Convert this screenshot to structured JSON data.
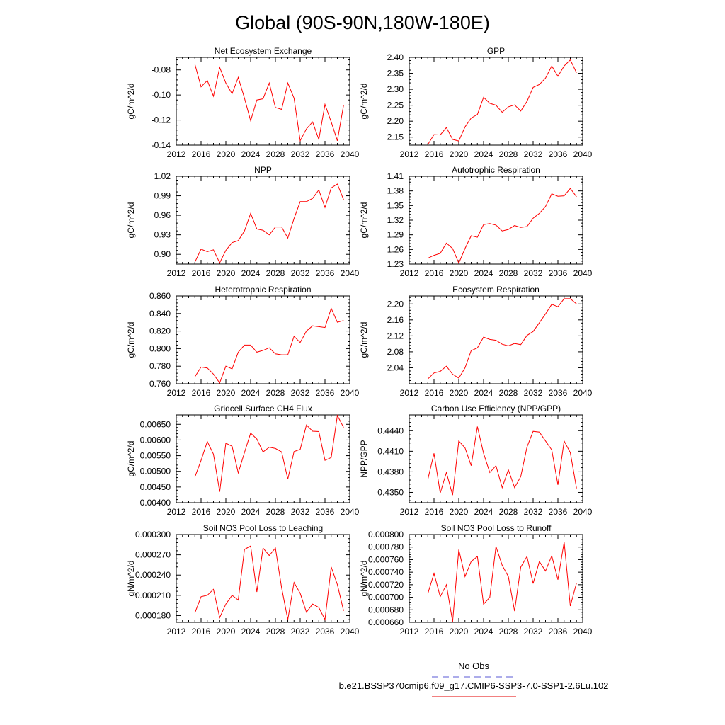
{
  "figure": {
    "title": "Global (90S-90N,180W-180E)",
    "legend": [
      {
        "label": "No Obs",
        "color": "#5a5ad6",
        "dash": "dashed"
      },
      {
        "label": "b.e21.BSSP370cmip6.f09_g17.CMIP6-SSP3-7.0-SSP1-2.6Lu.102",
        "color": "#e60000",
        "dash": "solid"
      }
    ]
  },
  "colors": {
    "series": "#ff0000",
    "axis": "#000000",
    "background": "#ffffff"
  },
  "chart_data": [
    {
      "type": "line",
      "title": "Net Ecosystem Exchange",
      "ylabel": "gC/m^2/d",
      "xlim": [
        2012,
        2040
      ],
      "ylim": [
        -0.14,
        -0.07
      ],
      "xticks": [
        2012,
        2016,
        2020,
        2024,
        2028,
        2032,
        2036,
        2040
      ],
      "yticks": [
        -0.14,
        -0.12,
        -0.1,
        -0.08
      ],
      "ytick_labels": [
        "-0.14",
        "-0.12",
        "-0.10",
        "-0.08"
      ],
      "x": [
        2015,
        2016,
        2017,
        2018,
        2019,
        2020,
        2021,
        2022,
        2023,
        2024,
        2025,
        2026,
        2027,
        2028,
        2029,
        2030,
        2031,
        2032,
        2033,
        2034,
        2035,
        2036,
        2037,
        2038,
        2039
      ],
      "values": [
        -0.0755,
        -0.0935,
        -0.0885,
        -0.101,
        -0.078,
        -0.0905,
        -0.099,
        -0.086,
        -0.1025,
        -0.1205,
        -0.104,
        -0.103,
        -0.0905,
        -0.11,
        -0.1115,
        -0.0905,
        -0.1025,
        -0.1365,
        -0.127,
        -0.1215,
        -0.1355,
        -0.1075,
        -0.1215,
        -0.1365,
        -0.108
      ]
    },
    {
      "type": "line",
      "title": "GPP",
      "ylabel": "gC/m^2/d",
      "xlim": [
        2012,
        2040
      ],
      "ylim": [
        2.125,
        2.4
      ],
      "xticks": [
        2012,
        2016,
        2020,
        2024,
        2028,
        2032,
        2036,
        2040
      ],
      "yticks": [
        2.15,
        2.2,
        2.25,
        2.3,
        2.35,
        2.4
      ],
      "ytick_labels": [
        "2.15",
        "2.20",
        "2.25",
        "2.30",
        "2.35",
        "2.40"
      ],
      "x": [
        2015,
        2016,
        2017,
        2018,
        2019,
        2020,
        2021,
        2022,
        2023,
        2024,
        2025,
        2026,
        2027,
        2028,
        2029,
        2030,
        2031,
        2032,
        2033,
        2034,
        2035,
        2036,
        2037,
        2038,
        2039
      ],
      "values": [
        2.127,
        2.158,
        2.157,
        2.18,
        2.143,
        2.138,
        2.182,
        2.21,
        2.221,
        2.275,
        2.256,
        2.25,
        2.228,
        2.245,
        2.251,
        2.232,
        2.262,
        2.306,
        2.315,
        2.335,
        2.373,
        2.341,
        2.373,
        2.392,
        2.352
      ]
    },
    {
      "type": "line",
      "title": "NPP",
      "ylabel": "gC/m^2/d",
      "xlim": [
        2012,
        2040
      ],
      "ylim": [
        0.885,
        1.02
      ],
      "xticks": [
        2012,
        2016,
        2020,
        2024,
        2028,
        2032,
        2036,
        2040
      ],
      "yticks": [
        0.9,
        0.93,
        0.96,
        0.99,
        1.02
      ],
      "ytick_labels": [
        "0.90",
        "0.93",
        "0.96",
        "0.99",
        "1.02"
      ],
      "x": [
        2015,
        2016,
        2017,
        2018,
        2019,
        2020,
        2021,
        2022,
        2023,
        2024,
        2025,
        2026,
        2027,
        2028,
        2029,
        2030,
        2031,
        2032,
        2033,
        2034,
        2035,
        2036,
        2037,
        2038,
        2039
      ],
      "values": [
        0.888,
        0.908,
        0.904,
        0.907,
        0.887,
        0.906,
        0.918,
        0.921,
        0.936,
        0.963,
        0.939,
        0.937,
        0.93,
        0.942,
        0.942,
        0.925,
        0.955,
        0.981,
        0.981,
        0.986,
        0.999,
        0.972,
        1.002,
        1.008,
        0.984
      ]
    },
    {
      "type": "line",
      "title": "Autotrophic Respiration",
      "ylabel": "gC/m^2/d",
      "xlim": [
        2012,
        2040
      ],
      "ylim": [
        1.23,
        1.41
      ],
      "xticks": [
        2012,
        2016,
        2020,
        2024,
        2028,
        2032,
        2036,
        2040
      ],
      "yticks": [
        1.23,
        1.26,
        1.29,
        1.32,
        1.35,
        1.38,
        1.41
      ],
      "ytick_labels": [
        "1.23",
        "1.26",
        "1.29",
        "1.32",
        "1.35",
        "1.38",
        "1.41"
      ],
      "x": [
        2015,
        2016,
        2017,
        2018,
        2019,
        2020,
        2021,
        2022,
        2023,
        2024,
        2025,
        2026,
        2027,
        2028,
        2029,
        2030,
        2031,
        2032,
        2033,
        2034,
        2035,
        2036,
        2037,
        2038,
        2039
      ],
      "values": [
        1.242,
        1.248,
        1.252,
        1.273,
        1.262,
        1.232,
        1.262,
        1.288,
        1.285,
        1.311,
        1.313,
        1.31,
        1.298,
        1.301,
        1.309,
        1.305,
        1.307,
        1.324,
        1.334,
        1.348,
        1.374,
        1.369,
        1.37,
        1.385,
        1.368
      ]
    },
    {
      "type": "line",
      "title": "Heterotrophic Respiration",
      "ylabel": "gC/m^2/d",
      "xlim": [
        2012,
        2040
      ],
      "ylim": [
        0.76,
        0.86
      ],
      "xticks": [
        2012,
        2016,
        2020,
        2024,
        2028,
        2032,
        2036,
        2040
      ],
      "yticks": [
        0.76,
        0.78,
        0.8,
        0.82,
        0.84,
        0.86
      ],
      "ytick_labels": [
        "0.760",
        "0.780",
        "0.800",
        "0.820",
        "0.840",
        "0.860"
      ],
      "x": [
        2015,
        2016,
        2017,
        2018,
        2019,
        2020,
        2021,
        2022,
        2023,
        2024,
        2025,
        2026,
        2027,
        2028,
        2029,
        2030,
        2031,
        2032,
        2033,
        2034,
        2035,
        2036,
        2037,
        2038,
        2039
      ],
      "values": [
        0.768,
        0.779,
        0.778,
        0.771,
        0.761,
        0.78,
        0.777,
        0.796,
        0.804,
        0.804,
        0.796,
        0.798,
        0.801,
        0.794,
        0.793,
        0.793,
        0.814,
        0.807,
        0.82,
        0.826,
        0.825,
        0.824,
        0.846,
        0.83,
        0.832
      ]
    },
    {
      "type": "line",
      "title": "Ecosystem Respiration",
      "ylabel": "gC/m^2/d",
      "xlim": [
        2012,
        2040
      ],
      "ylim": [
        2.0,
        2.22
      ],
      "xticks": [
        2012,
        2016,
        2020,
        2024,
        2028,
        2032,
        2036,
        2040
      ],
      "yticks": [
        2.04,
        2.08,
        2.12,
        2.16,
        2.2
      ],
      "ytick_labels": [
        "2.04",
        "2.08",
        "2.12",
        "2.16",
        "2.20"
      ],
      "x": [
        2015,
        2016,
        2017,
        2018,
        2019,
        2020,
        2021,
        2022,
        2023,
        2024,
        2025,
        2026,
        2027,
        2028,
        2029,
        2030,
        2031,
        2032,
        2033,
        2034,
        2035,
        2036,
        2037,
        2038,
        2039
      ],
      "values": [
        2.012,
        2.027,
        2.031,
        2.044,
        2.024,
        2.014,
        2.04,
        2.083,
        2.09,
        2.117,
        2.111,
        2.109,
        2.099,
        2.095,
        2.101,
        2.098,
        2.121,
        2.131,
        2.153,
        2.175,
        2.199,
        2.193,
        2.213,
        2.213,
        2.2
      ]
    },
    {
      "type": "line",
      "title": "Gridcell Surface CH4 Flux",
      "ylabel": "gC/m^2/d",
      "xlim": [
        2012,
        2040
      ],
      "ylim": [
        0.004,
        0.0068
      ],
      "xticks": [
        2012,
        2016,
        2020,
        2024,
        2028,
        2032,
        2036,
        2040
      ],
      "yticks": [
        0.004,
        0.0045,
        0.005,
        0.0055,
        0.006,
        0.0065
      ],
      "ytick_labels": [
        "0.00400",
        "0.00450",
        "0.00500",
        "0.00550",
        "0.00600",
        "0.00650"
      ],
      "x": [
        2015,
        2016,
        2017,
        2018,
        2019,
        2020,
        2021,
        2022,
        2023,
        2024,
        2025,
        2026,
        2027,
        2028,
        2029,
        2030,
        2031,
        2032,
        2033,
        2034,
        2035,
        2036,
        2037,
        2038,
        2039
      ],
      "values": [
        0.00482,
        0.00535,
        0.00595,
        0.00555,
        0.00435,
        0.0059,
        0.0058,
        0.00495,
        0.0056,
        0.00622,
        0.00603,
        0.00562,
        0.00577,
        0.00573,
        0.00562,
        0.00475,
        0.00563,
        0.0057,
        0.00648,
        0.00628,
        0.00627,
        0.00535,
        0.00544,
        0.00678,
        0.0064
      ]
    },
    {
      "type": "line",
      "title": "Carbon Use Efficiency (NPP/GPP)",
      "ylabel": "NPP/GPP",
      "xlim": [
        2012,
        2040
      ],
      "ylim": [
        0.4335,
        0.4463
      ],
      "xticks": [
        2012,
        2016,
        2020,
        2024,
        2028,
        2032,
        2036,
        2040
      ],
      "yticks": [
        0.435,
        0.438,
        0.441,
        0.444
      ],
      "ytick_labels": [
        "0.4350",
        "0.4380",
        "0.4410",
        "0.4440"
      ],
      "x": [
        2015,
        2016,
        2017,
        2018,
        2019,
        2020,
        2021,
        2022,
        2023,
        2024,
        2025,
        2026,
        2027,
        2028,
        2029,
        2030,
        2031,
        2032,
        2033,
        2034,
        2035,
        2036,
        2037,
        2038,
        2039
      ],
      "values": [
        0.4369,
        0.4407,
        0.4349,
        0.4379,
        0.4346,
        0.4425,
        0.4415,
        0.4389,
        0.4446,
        0.4407,
        0.4379,
        0.4389,
        0.4357,
        0.4383,
        0.4357,
        0.4373,
        0.4416,
        0.4439,
        0.4438,
        0.4425,
        0.4412,
        0.4361,
        0.4425,
        0.4408,
        0.4356
      ]
    },
    {
      "type": "line",
      "title": "Soil NO3 Pool Loss to Leaching",
      "ylabel": "gN/m^2/d",
      "xlim": [
        2012,
        2040
      ],
      "ylim": [
        0.00017,
        0.0003
      ],
      "xticks": [
        2012,
        2016,
        2020,
        2024,
        2028,
        2032,
        2036,
        2040
      ],
      "yticks": [
        0.00018,
        0.00021,
        0.00024,
        0.00027,
        0.0003
      ],
      "ytick_labels": [
        "0.000180",
        "0.000210",
        "0.000240",
        "0.000270",
        "0.000300"
      ],
      "x": [
        2015,
        2016,
        2017,
        2018,
        2019,
        2020,
        2021,
        2022,
        2023,
        2024,
        2025,
        2026,
        2027,
        2028,
        2029,
        2030,
        2031,
        2032,
        2033,
        2034,
        2035,
        2036,
        2037,
        2038,
        2039
      ],
      "values": [
        0.000184,
        0.000208,
        0.00021,
        0.000219,
        0.000177,
        0.000197,
        0.00021,
        0.000203,
        0.000278,
        0.000283,
        0.000215,
        0.00028,
        0.000269,
        0.00028,
        0.000221,
        0.000174,
        0.000229,
        0.000213,
        0.000185,
        0.000197,
        0.000192,
        0.000174,
        0.000252,
        0.000226,
        0.000187
      ]
    },
    {
      "type": "line",
      "title": "Soil NO3 Pool Loss to Runoff",
      "ylabel": "gN/m^2/d",
      "xlim": [
        2012,
        2040
      ],
      "ylim": [
        0.00066,
        0.0008
      ],
      "xticks": [
        2012,
        2016,
        2020,
        2024,
        2028,
        2032,
        2036,
        2040
      ],
      "yticks": [
        0.00066,
        0.00068,
        0.0007,
        0.00072,
        0.00074,
        0.00076,
        0.00078,
        0.0008
      ],
      "ytick_labels": [
        "0.000660",
        "0.000680",
        "0.000700",
        "0.000720",
        "0.000740",
        "0.000760",
        "0.000780",
        "0.000800"
      ],
      "x": [
        2015,
        2016,
        2017,
        2018,
        2019,
        2020,
        2021,
        2022,
        2023,
        2024,
        2025,
        2026,
        2027,
        2028,
        2029,
        2030,
        2031,
        2032,
        2033,
        2034,
        2035,
        2036,
        2037,
        2038,
        2039
      ],
      "values": [
        0.000706,
        0.000738,
        0.000701,
        0.00072,
        0.000661,
        0.000776,
        0.000733,
        0.000757,
        0.000765,
        0.000689,
        0.0007,
        0.000781,
        0.000751,
        0.000733,
        0.000678,
        0.000748,
        0.000765,
        0.000722,
        0.000757,
        0.000742,
        0.000766,
        0.000728,
        0.000788,
        0.000686,
        0.000723
      ]
    }
  ]
}
